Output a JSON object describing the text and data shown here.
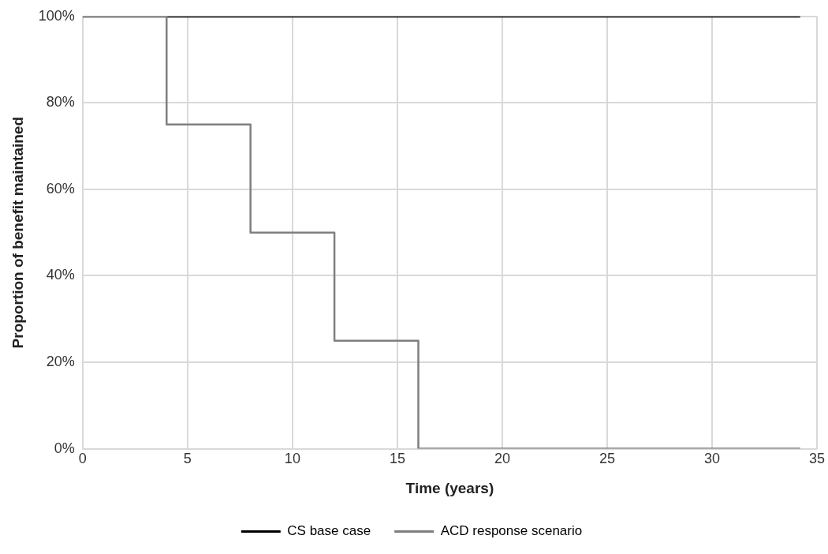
{
  "chart_data": {
    "type": "line",
    "xlabel": "Time (years)",
    "ylabel": "Proportion of benefit maintained",
    "xlim": [
      0,
      35
    ],
    "xticks": [
      0,
      5,
      10,
      15,
      20,
      25,
      30,
      35
    ],
    "ylim": [
      0,
      100
    ],
    "yticks": [
      {
        "value": 0,
        "label": "0%"
      },
      {
        "value": 20,
        "label": "20%"
      },
      {
        "value": 40,
        "label": "40%"
      },
      {
        "value": 60,
        "label": "60%"
      },
      {
        "value": 80,
        "label": "80%"
      },
      {
        "value": 100,
        "label": "100%"
      }
    ],
    "grid": true,
    "legend": "bottom",
    "marker": "none",
    "line_style": "solid",
    "series": [
      {
        "name": "CS base case",
        "color": "#000000",
        "type": "line",
        "x": [
          0,
          34.2
        ],
        "values": [
          100,
          100
        ]
      },
      {
        "name": "ACD response scenario",
        "color": "#7f7f7f",
        "type": "step",
        "x": [
          0,
          4,
          8,
          12,
          16,
          34.2
        ],
        "values": [
          100,
          75,
          50,
          25,
          0,
          0
        ]
      }
    ]
  }
}
